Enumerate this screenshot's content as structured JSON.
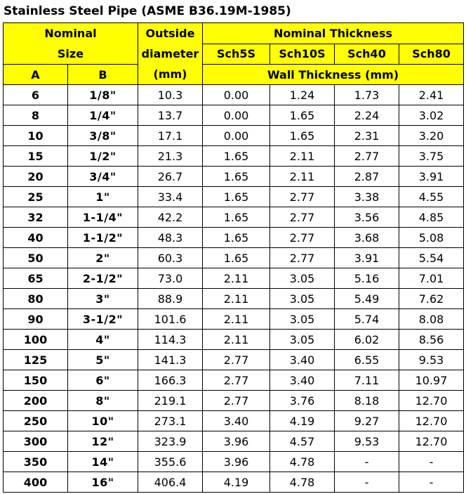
{
  "title": "Stainless Steel Pipe (ASME B36.19M-1985)",
  "headers": {
    "nominal_size_line1": "Nominal",
    "nominal_size_line2": "Size",
    "outside_diameter_line1": "Outside",
    "outside_diameter_line2": "diameter",
    "outside_diameter_unit": "(mm)",
    "nominal_thickness": "Nominal Thickness",
    "sch5s": "Sch5S",
    "sch10s": "Sch10S",
    "sch40": "Sch40",
    "sch80": "Sch80",
    "col_a": "A",
    "col_b": "B",
    "wall_thickness": "Wall Thickness (mm)"
  },
  "rows": [
    [
      "6",
      "1/8\"",
      "10.3",
      "0.00",
      "1.24",
      "1.73",
      "2.41"
    ],
    [
      "8",
      "1/4\"",
      "13.7",
      "0.00",
      "1.65",
      "2.24",
      "3.02"
    ],
    [
      "10",
      "3/8\"",
      "17.1",
      "0.00",
      "1.65",
      "2.31",
      "3.20"
    ],
    [
      "15",
      "1/2\"",
      "21.3",
      "1.65",
      "2.11",
      "2.77",
      "3.75"
    ],
    [
      "20",
      "3/4\"",
      "26.7",
      "1.65",
      "2.11",
      "2.87",
      "3.91"
    ],
    [
      "25",
      "1\"",
      "33.4",
      "1.65",
      "2.77",
      "3.38",
      "4.55"
    ],
    [
      "32",
      "1-1/4\"",
      "42.2",
      "1.65",
      "2.77",
      "3.56",
      "4.85"
    ],
    [
      "40",
      "1-1/2\"",
      "48.3",
      "1.65",
      "2.77",
      "3.68",
      "5.08"
    ],
    [
      "50",
      "2\"",
      "60.3",
      "1.65",
      "2.77",
      "3.91",
      "5.54"
    ],
    [
      "65",
      "2-1/2\"",
      "73.0",
      "2.11",
      "3.05",
      "5.16",
      "7.01"
    ],
    [
      "80",
      "3\"",
      "88.9",
      "2.11",
      "3.05",
      "5.49",
      "7.62"
    ],
    [
      "90",
      "3-1/2\"",
      "101.6",
      "2.11",
      "3.05",
      "5.74",
      "8.08"
    ],
    [
      "100",
      "4\"",
      "114.3",
      "2.11",
      "3.05",
      "6.02",
      "8.56"
    ],
    [
      "125",
      "5\"",
      "141.3",
      "2.77",
      "3.40",
      "6.55",
      "9.53"
    ],
    [
      "150",
      "6\"",
      "166.3",
      "2.77",
      "3.40",
      "7.11",
      "10.97"
    ],
    [
      "200",
      "8\"",
      "219.1",
      "2.77",
      "3.76",
      "8.18",
      "12.70"
    ],
    [
      "250",
      "10\"",
      "273.1",
      "3.40",
      "4.19",
      "9.27",
      "12.70"
    ],
    [
      "300",
      "12\"",
      "323.9",
      "3.96",
      "4.57",
      "9.53",
      "12.70"
    ],
    [
      "350",
      "14\"",
      "355.6",
      "3.96",
      "4.78",
      "-",
      "-"
    ],
    [
      "400",
      "16\"",
      "406.4",
      "4.19",
      "4.78",
      "-",
      "-"
    ]
  ],
  "colors": {
    "header_background": "#ffff00",
    "border": "#000000",
    "text": "#000000"
  }
}
